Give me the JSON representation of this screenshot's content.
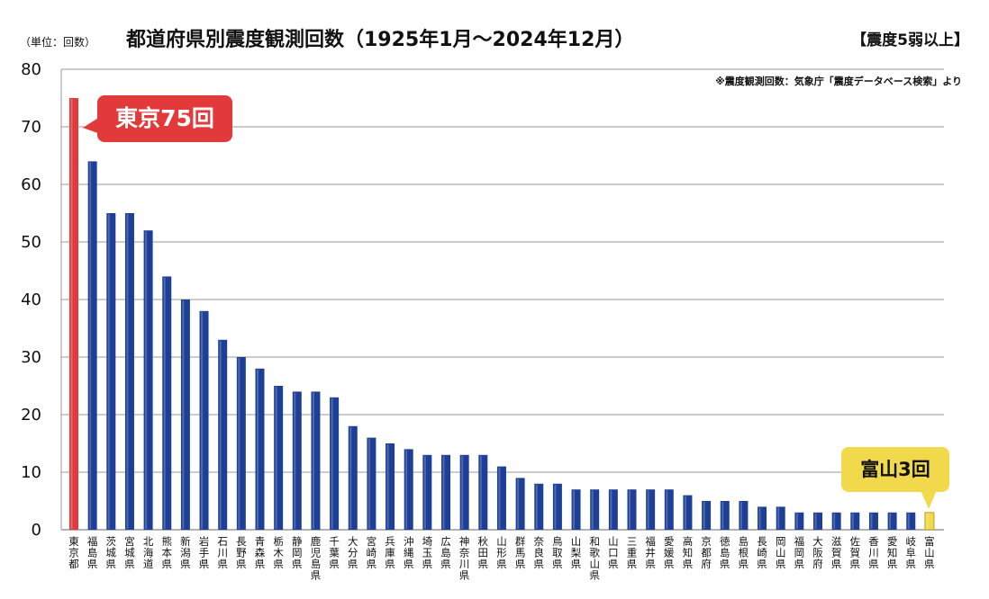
{
  "header": {
    "title": "都道府県別震度観測回数（1925年1月～2024年12月）",
    "unit": "（単位：回数）",
    "filter": "【震度5弱以上】",
    "source": "※震度観測回数：気象庁「震度データベース検索」より"
  },
  "callouts": {
    "tokyo": "東京75回",
    "toyama": "富山3回"
  },
  "colors": {
    "bar": "#1e3f96",
    "highlight_tokyo": "#e23a3a",
    "highlight_toyama": "#f2d84b",
    "grid": "#9a9a9a"
  },
  "chart_data": {
    "type": "bar",
    "title": "都道府県別震度観測回数（1925年1月～2024年12月）",
    "ylabel": "（単位：回数）",
    "ylim": [
      0,
      80
    ],
    "yticks": [
      0,
      10,
      20,
      30,
      40,
      50,
      60,
      70,
      80
    ],
    "grid": true,
    "categories": [
      "東京都",
      "福島県",
      "茨城県",
      "宮城県",
      "北海道",
      "熊本県",
      "新潟県",
      "岩手県",
      "石川県",
      "長野県",
      "青森県",
      "栃木県",
      "静岡県",
      "鹿児島県",
      "千葉県",
      "大分県",
      "宮崎県",
      "兵庫県",
      "沖縄県",
      "埼玉県",
      "広島県",
      "神奈川県",
      "秋田県",
      "山形県",
      "群馬県",
      "奈良県",
      "鳥取県",
      "山梨県",
      "和歌山県",
      "山口県",
      "三重県",
      "福井県",
      "愛媛県",
      "高知県",
      "京都府",
      "徳島県",
      "島根県",
      "長崎県",
      "岡山県",
      "福岡県",
      "大阪府",
      "滋賀県",
      "佐賀県",
      "香川県",
      "愛知県",
      "岐阜県",
      "富山県"
    ],
    "values": [
      75,
      64,
      55,
      55,
      52,
      44,
      40,
      38,
      33,
      30,
      28,
      25,
      24,
      24,
      23,
      18,
      16,
      15,
      14,
      13,
      13,
      13,
      13,
      11,
      9,
      8,
      8,
      7,
      7,
      7,
      7,
      7,
      7,
      6,
      5,
      5,
      5,
      4,
      4,
      3,
      3,
      3,
      3,
      3,
      3,
      3,
      3
    ],
    "highlights": {
      "東京都": "tokyo",
      "富山県": "toyama"
    }
  }
}
